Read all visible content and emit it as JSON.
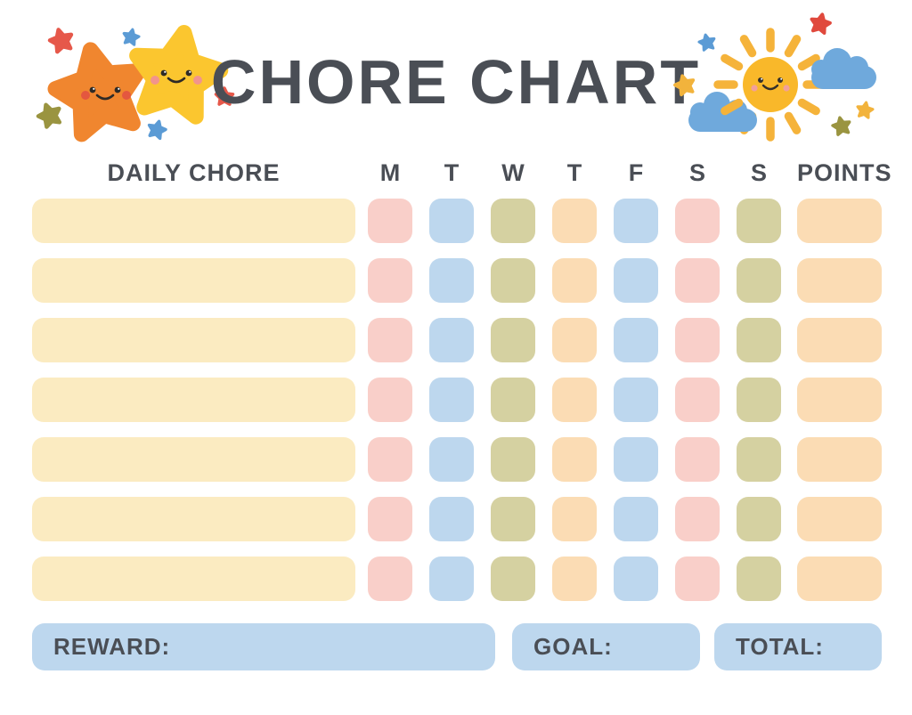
{
  "title": "CHORE CHART",
  "header": {
    "chore_label": "DAILY CHORE",
    "days": [
      "M",
      "T",
      "W",
      "T",
      "F",
      "S",
      "S"
    ],
    "points_label": "POINTS"
  },
  "grid": {
    "rows": 7,
    "chore_cell_color": "cream",
    "day_cell_colors": [
      "pink",
      "blue",
      "olive",
      "peach",
      "blue",
      "pink",
      "olive"
    ],
    "points_cell_color": "peach"
  },
  "footer": {
    "reward_label": "REWARD:",
    "goal_label": "GOAL:",
    "total_label": "TOTAL:"
  },
  "colors": {
    "pink": "#F9CFC9",
    "blue": "#BDD7EE",
    "olive": "#D5D1A1",
    "peach": "#FBDCB4",
    "cream": "#FBEBC1",
    "label_blue": "#BDD7EE",
    "text": "#4A4E55",
    "orange_star": "#F0862F",
    "yellow_star": "#FBC62F",
    "small_red_star": "#E6584A",
    "small_blue_star": "#5B9BD5",
    "small_olive_star": "#9A9440",
    "sun_body": "#F9B82A",
    "sun_ray": "#F5B33A",
    "cloud": "#6FA9DC"
  },
  "decorations": {
    "left": "two smiling cartoon stars (orange and yellow) with small red, blue and olive stars",
    "right": "smiling cartoon sun with rays, two blue clouds and small red, blue, yellow and olive stars"
  }
}
